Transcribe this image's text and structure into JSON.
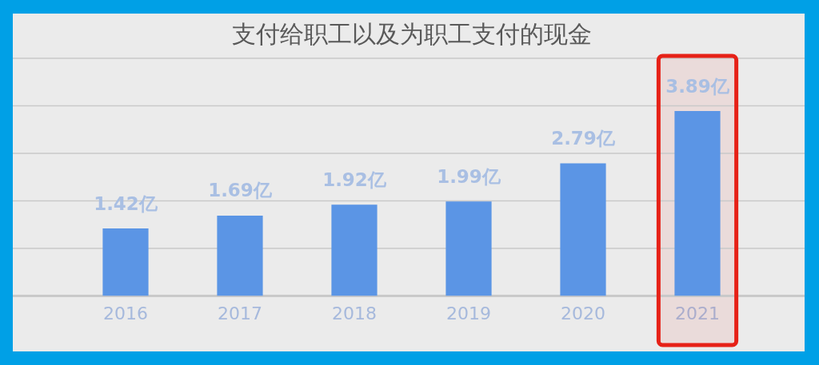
{
  "chart_data": {
    "type": "bar",
    "title": "支付给职工以及为职工支付的现金",
    "categories": [
      "2016",
      "2017",
      "2018",
      "2019",
      "2020",
      "2021"
    ],
    "values": [
      1.42,
      1.69,
      1.92,
      1.99,
      2.79,
      3.89
    ],
    "value_labels": [
      "1.42亿",
      "1.69亿",
      "1.92亿",
      "1.99亿",
      "2.79亿",
      "3.89亿"
    ],
    "color": "#5b95e5",
    "ylim": [
      0,
      5
    ],
    "yticks": [
      {
        "value": 0,
        "label": null
      },
      {
        "value": 1,
        "label": null
      },
      {
        "value": 2,
        "label": null
      },
      {
        "value": 3,
        "label": null
      },
      {
        "value": 4,
        "label": null
      },
      {
        "value": 5,
        "label": null
      }
    ],
    "tick_labels": "x",
    "grid": "y",
    "bands": [
      {
        "axis": "x",
        "from": "2021",
        "to": "2021",
        "color": "#e62117"
      }
    ]
  }
}
